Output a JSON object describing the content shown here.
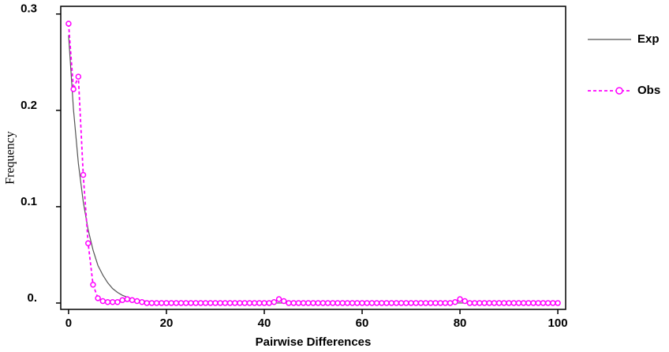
{
  "chart_data": {
    "type": "line",
    "x_label": "Pairwise Differences",
    "y_label": "Frequency",
    "x": [
      0,
      1,
      2,
      3,
      4,
      5,
      6,
      7,
      8,
      9,
      10,
      11,
      12,
      13,
      14,
      15,
      16,
      17,
      18,
      19,
      20,
      21,
      22,
      23,
      24,
      25,
      26,
      27,
      28,
      29,
      30,
      31,
      32,
      33,
      34,
      35,
      36,
      37,
      38,
      39,
      40,
      41,
      42,
      43,
      44,
      45,
      46,
      47,
      48,
      49,
      50,
      51,
      52,
      53,
      54,
      55,
      56,
      57,
      58,
      59,
      60,
      61,
      62,
      63,
      64,
      65,
      66,
      67,
      68,
      69,
      70,
      71,
      72,
      73,
      74,
      75,
      76,
      77,
      78,
      79,
      80,
      81,
      82,
      83,
      84,
      85,
      86,
      87,
      88,
      89,
      90,
      91,
      92,
      93,
      94,
      95,
      96,
      97,
      98,
      99,
      100
    ],
    "series": [
      {
        "name": "Exp",
        "color": "#555555",
        "style": "solid",
        "markers": false,
        "values": [
          0.278,
          0.201,
          0.145,
          0.105,
          0.076,
          0.055,
          0.039,
          0.029,
          0.021,
          0.015,
          0.011,
          0.008,
          0.006,
          0.004,
          0.003,
          0.002,
          0.002,
          0.001,
          0.001,
          0.001,
          0.001,
          0,
          0,
          0,
          0,
          0,
          0,
          0,
          0,
          0,
          0,
          0,
          0,
          0,
          0,
          0,
          0,
          0,
          0,
          0,
          0,
          0,
          0,
          0,
          0,
          0,
          0,
          0,
          0,
          0,
          0,
          0,
          0,
          0,
          0,
          0,
          0,
          0,
          0,
          0,
          0,
          0,
          0,
          0,
          0,
          0,
          0,
          0,
          0,
          0,
          0,
          0,
          0,
          0,
          0,
          0,
          0,
          0,
          0,
          0,
          0,
          0,
          0,
          0,
          0,
          0,
          0,
          0,
          0,
          0,
          0,
          0,
          0,
          0,
          0,
          0,
          0,
          0,
          0,
          0,
          0
        ]
      },
      {
        "name": "Obs",
        "color": "#ff00ff",
        "style": "dashed",
        "markers": true,
        "values": [
          0.29,
          0.222,
          0.235,
          0.133,
          0.062,
          0.019,
          0.005,
          0.002,
          0.001,
          0.001,
          0.001,
          0.003,
          0.004,
          0.003,
          0.002,
          0.001,
          0,
          0,
          0,
          0,
          0,
          0,
          0,
          0,
          0,
          0,
          0,
          0,
          0,
          0,
          0,
          0,
          0,
          0,
          0,
          0,
          0,
          0,
          0,
          0,
          0,
          0,
          0.001,
          0.004,
          0.002,
          0,
          0,
          0,
          0,
          0,
          0,
          0,
          0,
          0,
          0,
          0,
          0,
          0,
          0,
          0,
          0,
          0,
          0,
          0,
          0,
          0,
          0,
          0,
          0,
          0,
          0,
          0,
          0,
          0,
          0,
          0,
          0,
          0,
          0,
          0.001,
          0.004,
          0.002,
          0,
          0,
          0,
          0,
          0,
          0,
          0,
          0,
          0,
          0,
          0,
          0,
          0,
          0,
          0,
          0,
          0,
          0,
          0
        ]
      }
    ],
    "xlim": [
      -1.6,
      101.6
    ],
    "ylim": [
      -0.0066,
      0.308
    ],
    "xticks": [
      0,
      20,
      40,
      60,
      80,
      100
    ],
    "yticks": [
      {
        "value": 0,
        "label": "0."
      },
      0.1,
      0.2,
      0.3
    ],
    "legend": "right"
  }
}
